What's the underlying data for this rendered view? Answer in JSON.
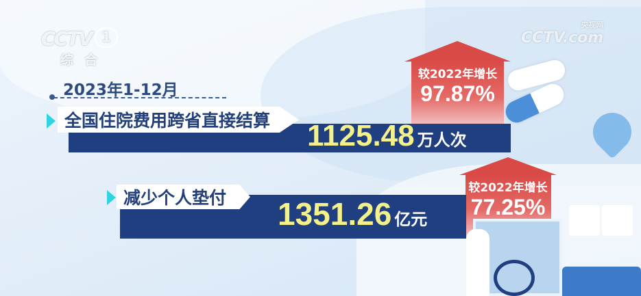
{
  "logo": {
    "channel": "CCTV",
    "number": "1",
    "name": "综合"
  },
  "watermark": {
    "brand": "CCTV.com",
    "sub": "央视网"
  },
  "period": "2023年1-12月",
  "stats": [
    {
      "label": "全国住院费用跨省直接结算",
      "value": "1125.48",
      "unit": "万人次",
      "compare_label": "较2022年增长",
      "growth": "97.87%"
    },
    {
      "label": "减少个人垫付",
      "value": "1351.26",
      "unit": "亿元",
      "compare_label": "较2022年增长",
      "growth": "77.25%"
    }
  ],
  "colors": {
    "bar": "#1f3f80",
    "number": "#f4f18b",
    "house": "#d94a47",
    "accent": "#2fd3e3"
  }
}
